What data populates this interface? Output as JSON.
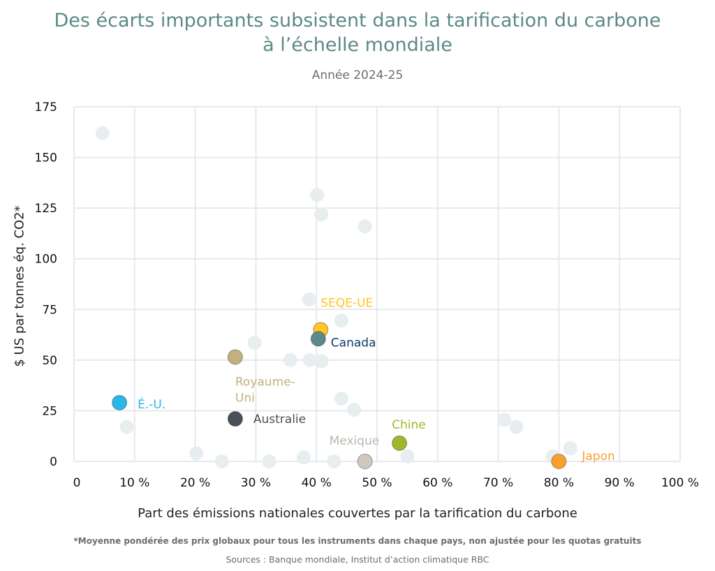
{
  "title_line1": "Des écarts importants subsistent dans la tarification du carbone",
  "title_line2": "à l’échelle mondiale",
  "subtitle": "Année 2024-25",
  "xlabel": "Part des émissions nationales couvertes par la tarification du carbone",
  "ylabel": "$ US par tonnes éq. CO2*",
  "footnote": "*Moyenne pondérée des prix globaux pour tous les instruments dans chaque pays, non ajustée pour les quotas gratuits",
  "sources": "Sources : Banque mondiale, Institut d’action climatique RBC",
  "chart_data": {
    "type": "scatter",
    "xlim": [
      0,
      100
    ],
    "ylim": [
      0,
      175
    ],
    "x_ticks": [
      0,
      10,
      20,
      30,
      40,
      50,
      60,
      70,
      80,
      90,
      100
    ],
    "x_tick_labels": [
      "0",
      "10 %",
      "20 %",
      "30 %",
      "40 %",
      "50 %",
      "60 %",
      "70 %",
      "80 %",
      "90 %",
      "100 %"
    ],
    "y_ticks": [
      0,
      25,
      50,
      75,
      100,
      125,
      150,
      175
    ],
    "y_tick_labels": [
      "0",
      "25",
      "50",
      "75",
      "100",
      "125",
      "150",
      "175"
    ],
    "grid": true,
    "background_points": [
      {
        "x": 4.7,
        "y": 162
      },
      {
        "x": 8.7,
        "y": 17
      },
      {
        "x": 20.2,
        "y": 4
      },
      {
        "x": 24.4,
        "y": 0
      },
      {
        "x": 29.8,
        "y": 58.5
      },
      {
        "x": 32.2,
        "y": 0
      },
      {
        "x": 35.7,
        "y": 50
      },
      {
        "x": 37.9,
        "y": 2
      },
      {
        "x": 38.8,
        "y": 80
      },
      {
        "x": 38.9,
        "y": 50
      },
      {
        "x": 40.1,
        "y": 131.5
      },
      {
        "x": 40.8,
        "y": 122
      },
      {
        "x": 40.8,
        "y": 49.5
      },
      {
        "x": 42.9,
        "y": 0
      },
      {
        "x": 44.1,
        "y": 69.5
      },
      {
        "x": 44.1,
        "y": 31
      },
      {
        "x": 46.2,
        "y": 25.5
      },
      {
        "x": 48.0,
        "y": 116
      },
      {
        "x": 55.0,
        "y": 2.5
      },
      {
        "x": 71.0,
        "y": 20.5
      },
      {
        "x": 73.0,
        "y": 17
      },
      {
        "x": 79.0,
        "y": 2.5
      },
      {
        "x": 81.9,
        "y": 6.5
      }
    ],
    "highlighted_points": [
      {
        "label": "É.-U.",
        "x": 7.5,
        "y": 29,
        "color": "#29b6e8"
      },
      {
        "label": "Royaume-Uni",
        "label_lines": [
          "Royaume-",
          "Uni"
        ],
        "x": 26.6,
        "y": 51.5,
        "color": "#c2b07f"
      },
      {
        "label": "Australie",
        "x": 26.6,
        "y": 21,
        "color": "#4b4f58"
      },
      {
        "label": "SEQE-UE",
        "x": 40.7,
        "y": 65,
        "color": "#ffc425"
      },
      {
        "label": "Canada",
        "x": 40.3,
        "y": 60.5,
        "color": "#5a8a8c",
        "label_color": "#0b3d6b"
      },
      {
        "label": "Mexique",
        "x": 48.0,
        "y": 0,
        "color": "#cfc8bf",
        "label_color": "#bdb6ae"
      },
      {
        "label": "Chine",
        "x": 53.7,
        "y": 9,
        "color": "#a3b52c"
      },
      {
        "label": "Japon",
        "x": 80.0,
        "y": 0,
        "color": "#f7a030"
      }
    ],
    "colors": {
      "background_point": "#e8edf0",
      "grid": "#e6e9ec",
      "title": "#5b8a86"
    }
  }
}
